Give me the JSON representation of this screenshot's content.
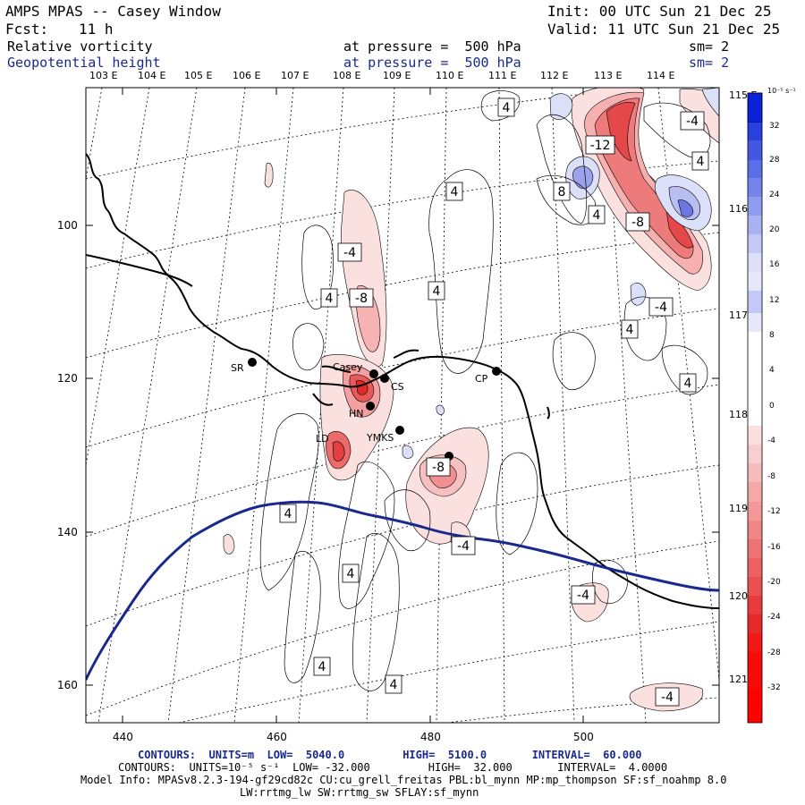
{
  "header": {
    "title": "AMPS MPAS -- Casey Window",
    "init": "Init: 00 UTC Sun 21 Dec 25",
    "fcst_label": "Fcst:",
    "fcst_value": "11 h",
    "valid": "Valid: 11 UTC Sun 21 Dec 25",
    "field1_name": "Relative vorticity",
    "field1_level": "at pressure =  500 hPa",
    "field1_sm": "sm= 2",
    "field2_name": "Geopotential height",
    "field2_level": "at pressure =  500 hPa",
    "field2_sm": "sm= 2"
  },
  "map": {
    "x_ticks": [
      "440",
      "460",
      "480",
      "500"
    ],
    "y_ticks": [
      "100",
      "120",
      "140",
      "160"
    ],
    "top_lon_labels": [
      "103 E",
      "104 E",
      "105 E",
      "106 E",
      "107 E",
      "108 E",
      "109 E",
      "110 E",
      "111 E",
      "112 E",
      "113 E",
      "114 E"
    ],
    "right_lat_labels": [
      "115 E",
      "116 E",
      "117 E",
      "118 E",
      "119 E",
      "120 E",
      "121 E"
    ],
    "stations": [
      {
        "name": "SR"
      },
      {
        "name": "Casey"
      },
      {
        "name": "CS"
      },
      {
        "name": "HN"
      },
      {
        "name": "YMKS"
      },
      {
        "name": "CP"
      },
      {
        "name": "LD"
      }
    ],
    "contour_labels": [
      "-4",
      "-8",
      "4",
      "-12",
      "8",
      "4",
      "-8",
      "-4",
      "4",
      "-4",
      "4",
      "-8",
      "4",
      "4",
      "-8",
      "4",
      "-4",
      "4",
      "4",
      "4",
      "-4",
      "4",
      "-4",
      "4",
      "4"
    ],
    "colors": {
      "height_contour": "#1a2a8c",
      "coast": "#000000",
      "neg_vorticity": "#e8323c",
      "pos_vorticity": "#3040d8"
    }
  },
  "colorbar": {
    "unit": "10⁻⁵ s⁻¹",
    "ticks": [
      "32",
      "28",
      "24",
      "20",
      "16",
      "12",
      "8",
      "4",
      "0",
      "-4",
      "-8",
      "-12",
      "-16",
      "-20",
      "-24",
      "-28",
      "-32"
    ]
  },
  "footer": {
    "line1": "CONTOURS:  UNITS=m  LOW=  5040.0         HIGH=  5100.0       INTERVAL=  60.000",
    "line2": "CONTOURS:  UNITS=10⁻⁵ s⁻¹  LOW= -32.000         HIGH=  32.000       INTERVAL=  4.0000",
    "line3": "Model Info: MPASv8.2.3-194-gf29cd82c CU:cu_grell_freitas PBL:bl_mynn MP:mp_thompson SF:sf_noahmp 8.0",
    "line4": "LW:rrtmg_lw SW:rrtmg_sw SFLAY:sf_mynn"
  }
}
